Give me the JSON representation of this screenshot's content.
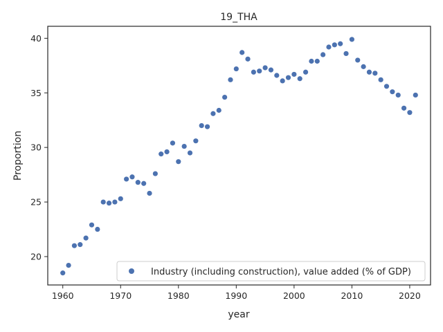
{
  "chart_data": {
    "type": "scatter",
    "title": "19_THA",
    "xlabel": "year",
    "ylabel": "Proportion",
    "xlim": [
      1957.4,
      2023.6
    ],
    "ylim": [
      17.4,
      41.1
    ],
    "xticks": [
      1960,
      1970,
      1980,
      1990,
      2000,
      2010,
      2020
    ],
    "yticks": [
      20,
      25,
      30,
      35,
      40
    ],
    "grid": false,
    "legend_position": "lower right",
    "marker_color": "#4c72b0",
    "series": [
      {
        "name": "Industry (including construction), value added (% of GDP)",
        "x": [
          1960,
          1961,
          1962,
          1963,
          1964,
          1965,
          1966,
          1967,
          1968,
          1969,
          1970,
          1971,
          1972,
          1973,
          1974,
          1975,
          1976,
          1977,
          1978,
          1979,
          1980,
          1981,
          1982,
          1983,
          1984,
          1985,
          1986,
          1987,
          1988,
          1989,
          1990,
          1991,
          1992,
          1993,
          1994,
          1995,
          1996,
          1997,
          1998,
          1999,
          2000,
          2001,
          2002,
          2003,
          2004,
          2005,
          2006,
          2007,
          2008,
          2009,
          2010,
          2011,
          2012,
          2013,
          2014,
          2015,
          2016,
          2017,
          2018,
          2019,
          2020,
          2021
        ],
        "y": [
          18.5,
          19.2,
          21.0,
          21.1,
          21.7,
          22.9,
          22.5,
          25.0,
          24.9,
          25.0,
          25.3,
          27.1,
          27.3,
          26.8,
          26.7,
          25.8,
          27.6,
          29.4,
          29.6,
          30.4,
          28.7,
          30.1,
          29.5,
          30.6,
          32.0,
          31.9,
          33.1,
          33.4,
          34.6,
          36.2,
          37.2,
          38.7,
          38.1,
          36.9,
          37.0,
          37.3,
          37.1,
          36.6,
          36.1,
          36.4,
          36.7,
          36.3,
          36.9,
          37.9,
          37.9,
          38.5,
          39.2,
          39.4,
          39.5,
          38.6,
          39.9,
          38.0,
          37.4,
          36.9,
          36.8,
          36.2,
          35.6,
          35.1,
          34.8,
          33.6,
          33.2,
          34.8
        ]
      }
    ]
  }
}
